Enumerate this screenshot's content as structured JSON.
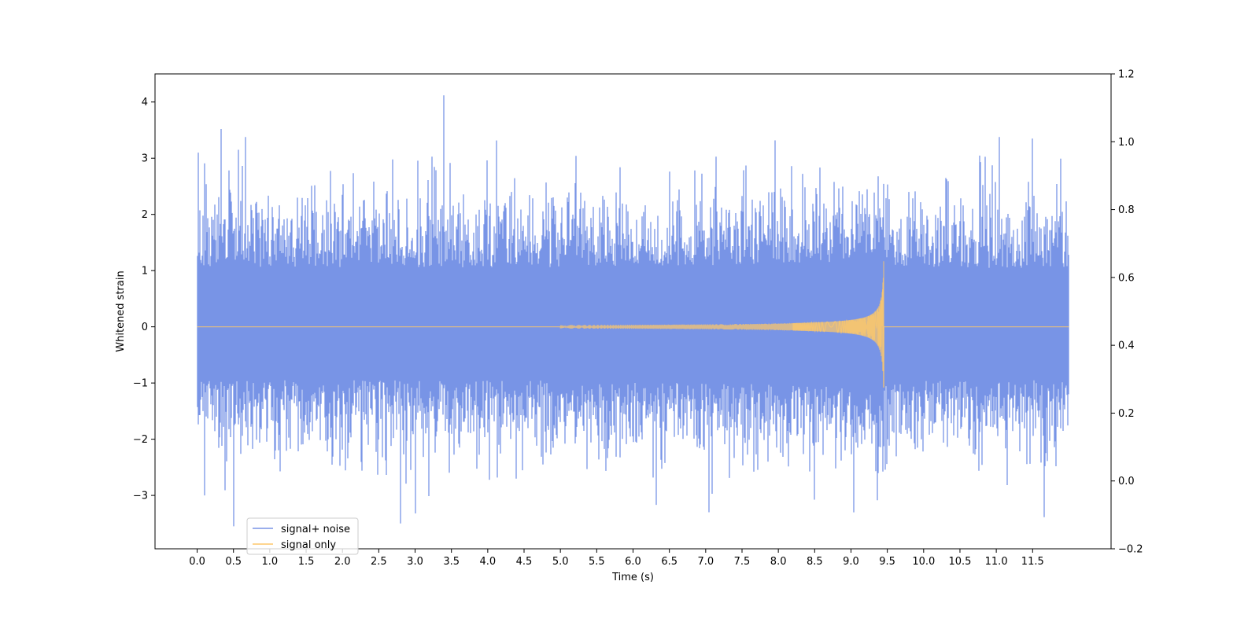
{
  "chart_data": {
    "type": "line",
    "title": "",
    "xlabel": "Time (s)",
    "ylabel": "Whitened strain",
    "xlim": [
      -0.58,
      12.58
    ],
    "ylim": [
      -3.95,
      4.5
    ],
    "y2lim": [
      -0.2,
      1.2
    ],
    "x_tick_labels": [
      "0.0",
      "0.5",
      "1.0",
      "1.5",
      "2.0",
      "2.5",
      "3.0",
      "3.5",
      "4.0",
      "4.5",
      "5.0",
      "5.5",
      "6.0",
      "6.5",
      "7.0",
      "7.5",
      "8.0",
      "8.5",
      "9.0",
      "9.5",
      "10.0",
      "10.5",
      "11.0",
      "11.5"
    ],
    "y_tick_labels": [
      "−3",
      "−2",
      "−1",
      "0",
      "1",
      "2",
      "3",
      "4"
    ],
    "y2_tick_labels": [
      "−0.2",
      "0.0",
      "0.2",
      "0.4",
      "0.6",
      "0.8",
      "1.0",
      "1.2"
    ],
    "grid": false,
    "legend_position": "lower-left",
    "series": [
      {
        "name": "signal+ noise",
        "color": "#7894e6",
        "description_values": {
          "x_range": [
            0.0,
            12.0
          ],
          "typical_envelope": [
            -1.6,
            1.8
          ],
          "peaks": [
            {
              "x": 0.02,
              "y": 3.1
            },
            {
              "x": 0.33,
              "y": 3.52
            },
            {
              "x": 0.57,
              "y": 3.15
            },
            {
              "x": 3.4,
              "y": 4.12
            },
            {
              "x": 11.5,
              "y": 3.35
            },
            {
              "x": 0.5,
              "y": -3.55
            },
            {
              "x": 2.8,
              "y": -3.5
            },
            {
              "x": 3.0,
              "y": -3.32
            },
            {
              "x": 7.05,
              "y": -3.3
            },
            {
              "x": 0.1,
              "y": -3.0
            }
          ]
        }
      },
      {
        "name": "signal only",
        "color": "#fdc76a",
        "description_values": {
          "type": "chirp",
          "x_start": 5.0,
          "merger_x": 9.45,
          "peak_amplitude": 1.18,
          "min_amplitude": -1.08,
          "zero_level": 0.0
        }
      }
    ]
  }
}
